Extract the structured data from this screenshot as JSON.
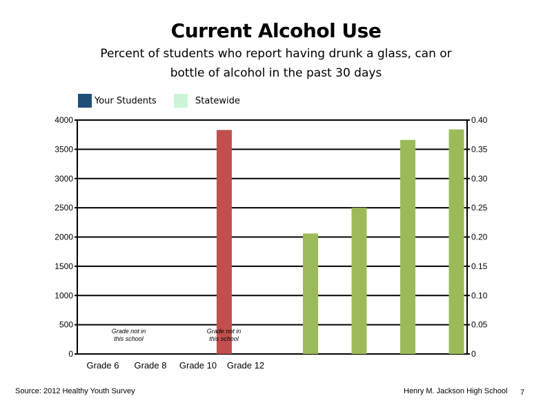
{
  "chart_data": {
    "type": "bar",
    "title": "Current Alcohol Use",
    "subtitle_lines": [
      "Percent of students who report having drunk a glass, can or",
      "bottle of alcohol in the past 30 days"
    ],
    "categories": [
      "Grade 6",
      "Grade 8",
      "Grade 10",
      "Grade 12"
    ],
    "legend": [
      {
        "name": "Your Students",
        "color": "#1f4e79"
      },
      {
        "name": "Statewide",
        "color": "#ccf5d8"
      }
    ],
    "left_axis": {
      "ylim": [
        0,
        4000
      ],
      "ticks": [
        "0",
        "500",
        "1000",
        "1500",
        "2000",
        "2500",
        "3000",
        "3500",
        "4000"
      ]
    },
    "right_axis": {
      "ylim": [
        0,
        0.4
      ],
      "ticks": [
        "0",
        "0.05",
        "0.10",
        "0.15",
        "0.20",
        "0.25",
        "0.30",
        "0.35",
        "0.40"
      ]
    },
    "series": [
      {
        "axis": "left",
        "color": "#c0504d",
        "points": [
          {
            "category_index": 2.55,
            "value": 3830
          }
        ]
      },
      {
        "axis": "right",
        "color": "#9bbb59",
        "values": [
          0.206,
          0.25,
          0.366,
          0.384
        ]
      }
    ],
    "annotations": [
      {
        "text_lines": [
          "Grade not in",
          "this school"
        ],
        "category_index": 0.5
      },
      {
        "text_lines": [
          "Grade not in",
          "this school"
        ],
        "category_index": 2.5
      }
    ],
    "grid": true
  },
  "footer": {
    "source": "Source: 2012 Healthy Youth Survey",
    "school": "Henry M. Jackson High School",
    "page": "7"
  }
}
